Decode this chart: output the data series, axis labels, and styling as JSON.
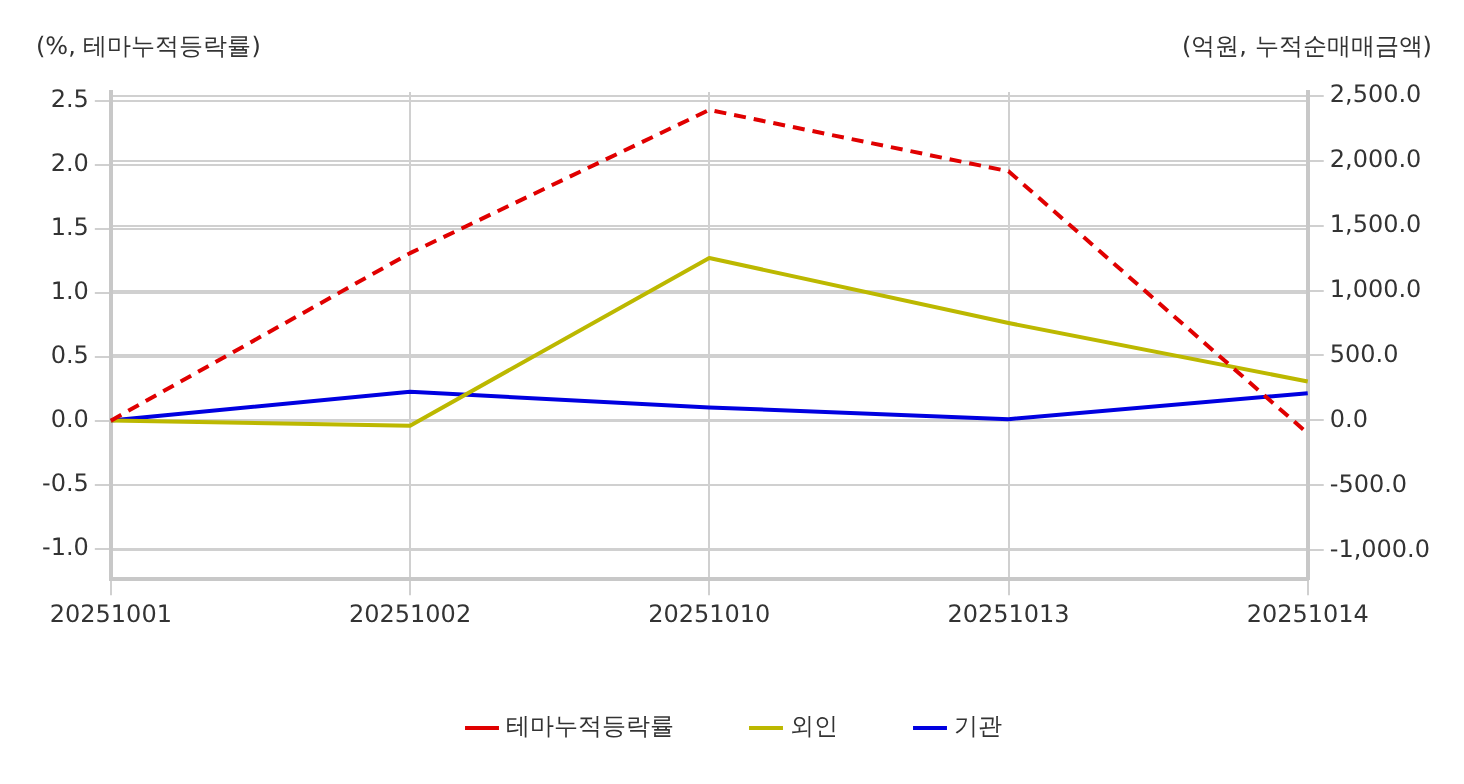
{
  "chart_data": {
    "type": "line",
    "ylabel": "(%, 테마누적등락률)",
    "y2label": "(억원, 누적순매매금액)",
    "categories": [
      "20251001",
      "20251002",
      "20251010",
      "20251013",
      "20251014"
    ],
    "series": [
      {
        "name": "테마누적등락률",
        "color": "#e00000",
        "line_style": "dashed",
        "values": [
          0,
          1.31,
          2.43,
          1.95,
          -0.1
        ]
      },
      {
        "name": "외인",
        "color": "#bcb800",
        "axis": "y2",
        "values": [
          0,
          -40,
          1250,
          750,
          300
        ]
      },
      {
        "name": "기관",
        "color": "#0000e0",
        "axis": "y2",
        "values": [
          0,
          220,
          100,
          10,
          210
        ]
      }
    ],
    "ylim": [
      -1.24,
      2.57
    ],
    "yticks": [
      {
        "value": -1,
        "label": "-1.0"
      },
      {
        "value": -0.5,
        "label": "-0.5"
      },
      {
        "value": 0,
        "label": "0.0"
      },
      {
        "value": 0.5,
        "label": "0.5"
      },
      {
        "value": 1,
        "label": "1.0"
      },
      {
        "value": 1.5,
        "label": "1.5"
      },
      {
        "value": 2,
        "label": "2.0"
      },
      {
        "value": 2.5,
        "label": "2.5"
      }
    ],
    "y2lim": [
      -1222,
      2528
    ],
    "y2ticks": [
      {
        "value": -1000,
        "label": "-1,000.0"
      },
      {
        "value": -500,
        "label": "-500.0"
      },
      {
        "value": 0,
        "label": "0.0"
      },
      {
        "value": 500,
        "label": "500.0"
      },
      {
        "value": 1000,
        "label": "1,000.0"
      },
      {
        "value": 1500,
        "label": "1,500.0"
      },
      {
        "value": 2000,
        "label": "2,000.0"
      },
      {
        "value": 2500,
        "label": "2,500.0"
      }
    ],
    "grid": true,
    "legend": "bottom",
    "marker": "none"
  }
}
